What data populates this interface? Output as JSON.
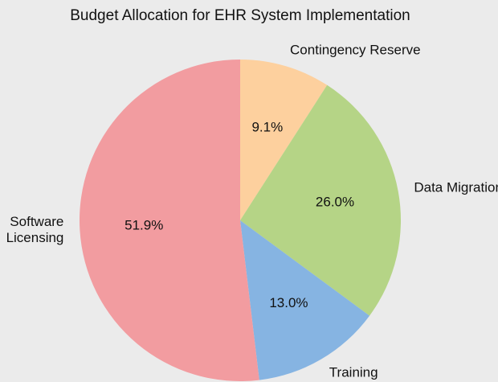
{
  "chart_data": {
    "type": "pie",
    "title": "Budget Allocation for EHR System Implementation",
    "categories": [
      "Contingency Reserve",
      "Data Migration",
      "Training",
      "Software\nLicensing"
    ],
    "values": [
      9.1,
      26.0,
      13.0,
      51.9
    ],
    "value_labels": [
      "9.1%",
      "26.0%",
      "13.0%",
      "51.9%"
    ],
    "colors": [
      "#fdd09e",
      "#b5d486",
      "#86b4e2",
      "#f29ca0"
    ]
  }
}
